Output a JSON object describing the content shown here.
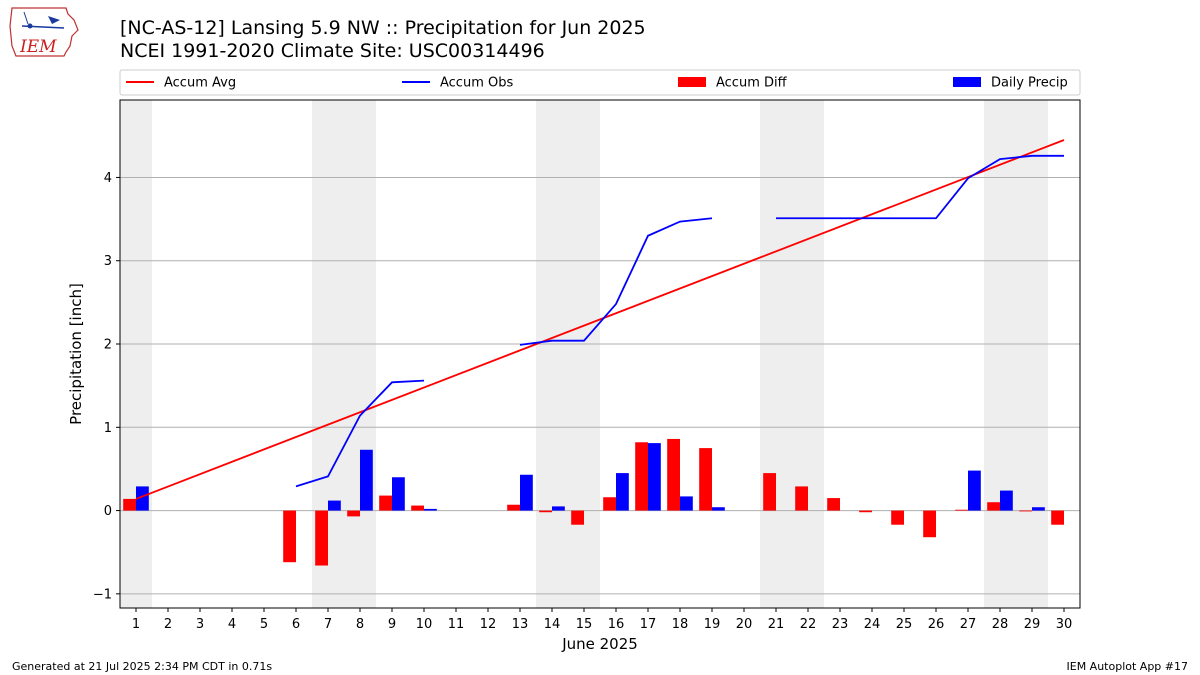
{
  "header": {
    "title_line1": "[NC-AS-12] Lansing 5.9 NW :: Precipitation for Jun 2025",
    "title_line2": "NCEI 1991-2020 Climate Site: USC00314496",
    "logo_text": "IEM"
  },
  "footer": {
    "left": "Generated at 21 Jul 2025 2:34 PM CDT in 0.71s",
    "right": "IEM Autoplot App #17"
  },
  "chart_data": {
    "type": "bar",
    "xlabel": "June 2025",
    "ylabel": "Precipitation [inch]",
    "xlim": [
      0.5,
      30.5
    ],
    "ylim": [
      -1.17,
      4.93
    ],
    "yticks": [
      -1,
      0,
      1,
      2,
      3,
      4
    ],
    "xticks": [
      1,
      2,
      3,
      4,
      5,
      6,
      7,
      8,
      9,
      10,
      11,
      12,
      13,
      14,
      15,
      16,
      17,
      18,
      19,
      20,
      21,
      22,
      23,
      24,
      25,
      26,
      27,
      28,
      29,
      30
    ],
    "grid": "y",
    "legend_placement": "top",
    "weekend_shading": [
      [
        0.5,
        1.5
      ],
      [
        6.5,
        8.5
      ],
      [
        13.5,
        15.5
      ],
      [
        20.5,
        22.5
      ],
      [
        27.5,
        29.5
      ]
    ],
    "colors": {
      "accum_avg": "#ff0000",
      "accum_obs": "#0000ff",
      "accum_diff": "#ff0000",
      "daily_precip": "#0000ff",
      "shade": "#eeeeee",
      "grid": "#b0b0b0"
    },
    "legend": [
      "Accum Avg",
      "Accum Obs",
      "Accum Diff",
      "Daily Precip"
    ],
    "accum_avg": {
      "name": "Accum Avg",
      "x": [
        1,
        30
      ],
      "y": [
        0.14,
        4.45
      ]
    },
    "accum_obs": {
      "name": "Accum Obs",
      "segments": [
        {
          "x": [
            6,
            7,
            8,
            9,
            10
          ],
          "y": [
            0.29,
            0.41,
            1.14,
            1.54,
            1.56
          ]
        },
        {
          "x": [
            13,
            14,
            15,
            16,
            17,
            18,
            19
          ],
          "y": [
            1.99,
            2.04,
            2.04,
            2.48,
            3.3,
            3.47,
            3.51
          ]
        },
        {
          "x": [
            21,
            22,
            23,
            24,
            25,
            26,
            27,
            28,
            29,
            30
          ],
          "y": [
            3.51,
            3.51,
            3.51,
            3.51,
            3.51,
            3.51,
            3.99,
            4.22,
            4.26,
            4.26
          ]
        }
      ]
    },
    "accum_diff": {
      "name": "Accum Diff",
      "x": [
        1,
        6,
        7,
        8,
        9,
        10,
        13,
        14,
        15,
        16,
        17,
        18,
        19,
        21,
        22,
        23,
        24,
        25,
        26,
        27,
        28,
        29,
        30
      ],
      "values": [
        0.14,
        -0.62,
        -0.66,
        -0.07,
        0.18,
        0.06,
        0.07,
        -0.02,
        -0.17,
        0.16,
        0.82,
        0.86,
        0.75,
        0.45,
        0.29,
        0.15,
        -0.02,
        -0.17,
        -0.32,
        0.01,
        0.1,
        -0.01,
        -0.17
      ]
    },
    "daily_precip": {
      "name": "Daily Precip",
      "x": [
        1,
        7,
        8,
        9,
        10,
        13,
        14,
        16,
        17,
        18,
        19,
        27,
        28,
        29
      ],
      "values": [
        0.29,
        0.12,
        0.73,
        0.4,
        0.02,
        0.43,
        0.05,
        0.45,
        0.81,
        0.17,
        0.04,
        0.48,
        0.24,
        0.04
      ]
    }
  }
}
